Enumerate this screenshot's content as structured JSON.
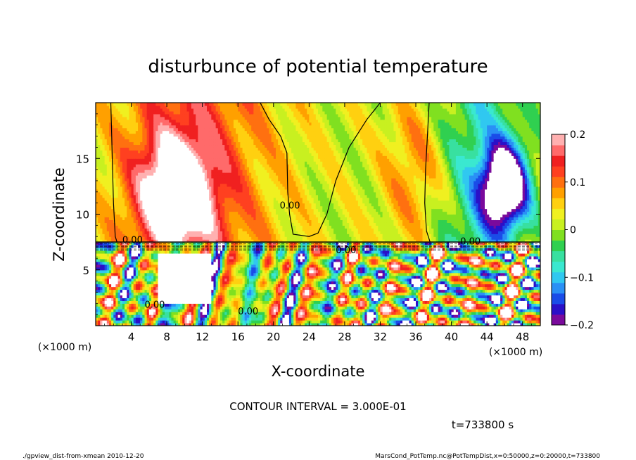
{
  "chart_data": {
    "type": "heatmap",
    "title": "disturbunce of potential temperature",
    "xlabel": "X-coordinate",
    "ylabel": "Z-coordinate",
    "x_unit": "(×1000 m)",
    "y_unit": "(×1000 m)",
    "xlim": [
      0,
      50
    ],
    "ylim": [
      0,
      20
    ],
    "x_ticks": [
      4,
      8,
      12,
      16,
      20,
      24,
      28,
      32,
      36,
      40,
      44,
      48
    ],
    "y_ticks": [
      5,
      10,
      15
    ],
    "colorbar": {
      "min": -0.2,
      "max": 0.2,
      "ticks": [
        0.2,
        0.1,
        0,
        -0.1,
        -0.2
      ],
      "tick_labels": [
        "0.2",
        "0.1",
        "0",
        "−0.1",
        "−0.2"
      ],
      "colors": [
        "#7a0a9c",
        "#2a10c8",
        "#1a4ce8",
        "#2a90f5",
        "#30c8f0",
        "#3ae8d0",
        "#38e0a0",
        "#30d050",
        "#80e020",
        "#c8f020",
        "#f0f020",
        "#ffd010",
        "#ffa000",
        "#ff7010",
        "#ff4020",
        "#f02020",
        "#ff6a6a",
        "#ffb0b0"
      ]
    },
    "zero_contour_label": "0.00",
    "contour_interval_text": "CONTOUR INTERVAL = 3.000E-01",
    "time_text": "t=733800 s",
    "footer_left": "./gpview_dist-from-xmean  2010-12-20",
    "footer_right": "MarsCond_PotTemp.nc@PotTempDist,x=0:50000,z=0:20000,t=733800",
    "field_description_ignored": ""
  }
}
